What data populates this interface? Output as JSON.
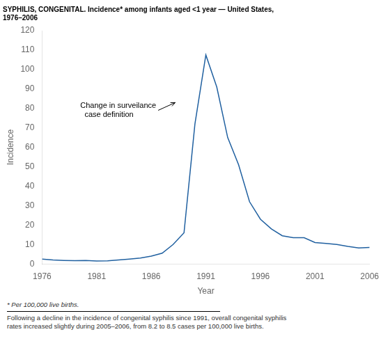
{
  "chart_data": {
    "type": "line",
    "title": [
      "SYPHILIS, CONGENITAL. Incidence* among infants aged <1 year — United States,",
      "1976–2006"
    ],
    "xlabel": "Year",
    "ylabel": "Incidence",
    "footnotes": [
      "* Per 100,000 live births.",
      "Following a decline in the incidence of congenital syphilis since 1991, overall congenital syphilis\nrates increased slightly during 2005–2006, from 8.2 to 8.5 cases per 100,000 live births."
    ],
    "annotations": [
      {
        "text": "Change in surveilance\n  case definition",
        "x": 1988.2,
        "y": 83.0,
        "text_x": 1979.5,
        "text_y": 79.0
      }
    ],
    "x": [
      1976,
      1977,
      1978,
      1979,
      1980,
      1981,
      1982,
      1983,
      1984,
      1985,
      1986,
      1987,
      1988,
      1989,
      1990,
      1991,
      1992,
      1993,
      1994,
      1995,
      1996,
      1997,
      1998,
      1999,
      2000,
      2001,
      2002,
      2003,
      2004,
      2005,
      2006
    ],
    "values": [
      2.5,
      2.0,
      1.8,
      1.7,
      1.8,
      1.5,
      1.6,
      2.0,
      2.5,
      3.0,
      4.0,
      5.5,
      10.0,
      16.0,
      72.0,
      107.5,
      91.0,
      65.0,
      51.0,
      32.0,
      23.0,
      18.0,
      14.5,
      13.5,
      13.5,
      11.0,
      10.5,
      10.0,
      9.0,
      8.2,
      8.5
    ],
    "color": "#2060a0",
    "xlim": [
      1976,
      2006
    ],
    "ylim": [
      0,
      120
    ],
    "xticks": [
      1976,
      1981,
      1986,
      1991,
      1996,
      2001,
      2006
    ],
    "yticks": [
      0,
      10,
      20,
      30,
      40,
      50,
      60,
      70,
      80,
      90,
      100,
      110,
      120
    ],
    "grid": false
  }
}
